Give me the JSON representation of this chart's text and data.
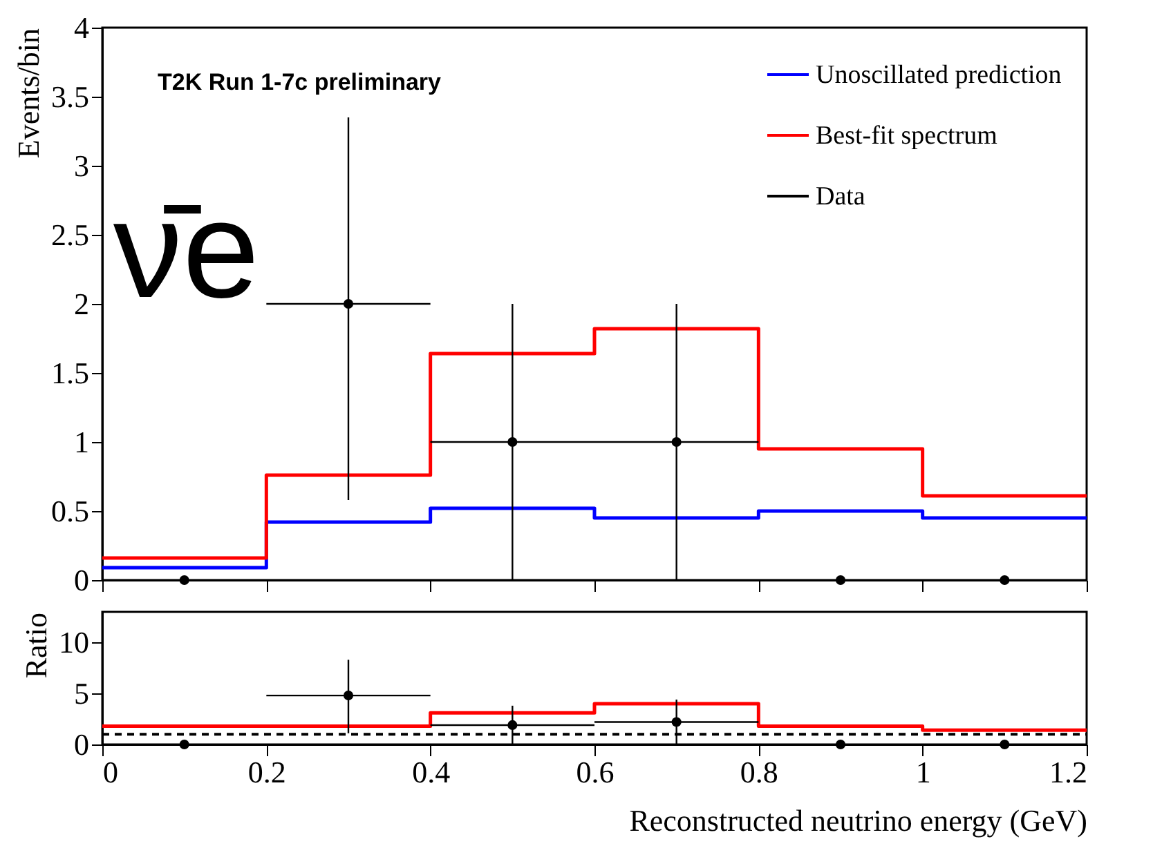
{
  "chart_data": [
    {
      "type": "histogram",
      "ylabel": "Events/bin",
      "bins": [
        0,
        0.2,
        0.4,
        0.6,
        0.8,
        1.0,
        1.2
      ],
      "xlim": [
        0,
        1.2
      ],
      "xticks": [
        0,
        0.2,
        0.4,
        0.6,
        0.8,
        1,
        1.2
      ],
      "ylim": [
        0,
        4
      ],
      "yticks": [
        0,
        0.5,
        1,
        1.5,
        2,
        2.5,
        3,
        3.5,
        4
      ],
      "tick_labels": "y",
      "legend": "top right",
      "annotations": [
        "T2K Run 1-7c preliminary",
        "ν̄e"
      ],
      "series": [
        {
          "name": "Unoscillated prediction",
          "color": "#0000ff",
          "values": [
            0.09,
            0.42,
            0.52,
            0.45,
            0.5,
            0.45
          ]
        },
        {
          "name": "Best-fit spectrum",
          "color": "#ff0000",
          "values": [
            0.16,
            0.76,
            1.64,
            1.82,
            0.95,
            0.61
          ]
        },
        {
          "name": "Data",
          "type": "scatter",
          "marker": "circle",
          "color": "#000000",
          "x": [
            0.1,
            0.3,
            0.5,
            0.7,
            0.9,
            1.1
          ],
          "values": [
            0,
            2,
            1,
            1,
            0,
            0
          ],
          "errors": [
            null,
            [
              0.58,
              3.35
            ],
            [
              0,
              2
            ],
            [
              0,
              2
            ],
            null,
            null
          ],
          "xerrors": [
            null,
            0.1,
            0.1,
            0.1,
            null,
            null
          ]
        }
      ]
    },
    {
      "type": "histogram",
      "ylabel": "Ratio",
      "xlabel": "Reconstructed neutrino energy (GeV)",
      "bins": [
        0,
        0.2,
        0.4,
        0.6,
        0.8,
        1.0,
        1.2
      ],
      "xlim": [
        0,
        1.2
      ],
      "xticks": [
        0,
        0.2,
        0.4,
        0.6,
        0.8,
        1,
        1.2
      ],
      "ylim": [
        0,
        13
      ],
      "yticks": [
        0,
        5,
        10
      ],
      "ref_lines": [
        {
          "axis": "y",
          "value": 1,
          "color": "#000000",
          "line_style": "dashed"
        }
      ],
      "series": [
        {
          "color": "#ff0000",
          "values": [
            1.8,
            1.8,
            3.1,
            4.0,
            1.8,
            1.4
          ]
        },
        {
          "type": "scatter",
          "marker": "circle",
          "color": "#000000",
          "x": [
            0.1,
            0.3,
            0.5,
            0.7,
            0.9,
            1.1
          ],
          "values": [
            0,
            4.8,
            1.9,
            2.2,
            0,
            0
          ],
          "errors": [
            null,
            [
              1.1,
              8.3
            ],
            [
              0,
              3.8
            ],
            [
              0,
              4.4
            ],
            null,
            null
          ],
          "xerrors": [
            null,
            0.1,
            0.1,
            0.1,
            null,
            null
          ]
        }
      ]
    }
  ]
}
